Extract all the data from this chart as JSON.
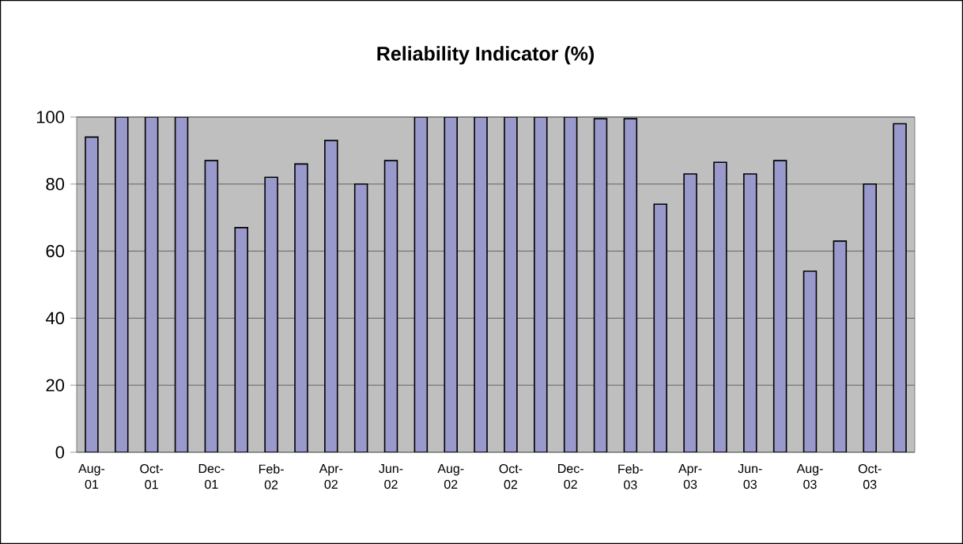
{
  "chart_data": {
    "type": "bar",
    "title": "Reliability Indicator (%)",
    "categories": [
      "Aug-01",
      null,
      "Oct-01",
      null,
      "Dec-01",
      null,
      "Feb-02",
      null,
      "Apr-02",
      null,
      "Jun-02",
      null,
      "Aug-02",
      null,
      "Oct-02",
      null,
      "Dec-02",
      null,
      "Feb-03",
      null,
      "Apr-03",
      null,
      "Jun-03",
      null,
      "Aug-03",
      null,
      "Oct-03",
      null
    ],
    "values": [
      94,
      100,
      100,
      100,
      87,
      67,
      82,
      86,
      93,
      80,
      87,
      100,
      100,
      100,
      100,
      100,
      100,
      99.5,
      99.5,
      74,
      83,
      86.5,
      83,
      87,
      54,
      63,
      80,
      98
    ],
    "color": "#9999cc",
    "ylim": [
      0,
      100
    ],
    "yticks": [
      0,
      20,
      40,
      60,
      80,
      100
    ],
    "grid": "y"
  }
}
